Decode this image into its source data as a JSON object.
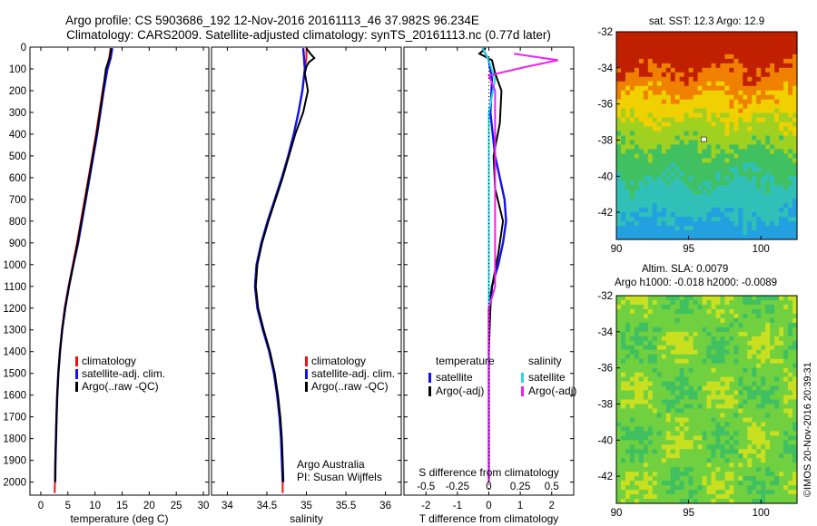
{
  "title_line1": "Argo profile: CS 5903686_192 12-Nov-2016 20161113_46 37.982S 96.234E",
  "title_line2": "Climatology: CARS2009. Satellite-adjusted climatology: synTS_20161113.nc (0.77d later)",
  "colors": {
    "clim": "#ee1111",
    "sat": "#1111ee",
    "argo": "#000000",
    "sat_s": "#22dddd",
    "argo_s": "#ee22ee"
  },
  "depth_axis": {
    "min": 0,
    "max": 2060,
    "ticks": [
      0,
      100,
      200,
      300,
      400,
      500,
      600,
      700,
      800,
      900,
      1000,
      1100,
      1200,
      1300,
      1400,
      1500,
      1600,
      1700,
      1800,
      1900,
      2000
    ]
  },
  "chart_data": [
    {
      "type": "line",
      "xlabel": "temperature (deg C)",
      "xlim": [
        -2,
        31
      ],
      "xticks": [
        0,
        5,
        10,
        15,
        20,
        25,
        30
      ],
      "legend": [
        "climatology",
        "satellite-adj. clim.",
        "Argo(..raw -QC)"
      ],
      "series": [
        {
          "name": "climatology",
          "color_key": "clim",
          "points": [
            [
              12.9,
              5
            ],
            [
              12.6,
              50
            ],
            [
              12.1,
              100
            ],
            [
              11.4,
              200
            ],
            [
              10.8,
              300
            ],
            [
              10.2,
              400
            ],
            [
              9.5,
              500
            ],
            [
              8.8,
              600
            ],
            [
              8.1,
              700
            ],
            [
              7.4,
              800
            ],
            [
              6.7,
              900
            ],
            [
              5.9,
              1000
            ],
            [
              5.1,
              1100
            ],
            [
              4.4,
              1200
            ],
            [
              3.9,
              1300
            ],
            [
              3.5,
              1400
            ],
            [
              3.2,
              1500
            ],
            [
              3.0,
              1600
            ],
            [
              2.85,
              1700
            ],
            [
              2.75,
              1800
            ],
            [
              2.65,
              1900
            ],
            [
              2.6,
              2000
            ],
            [
              2.55,
              2050
            ]
          ]
        },
        {
          "name": "satellite-adj. clim.",
          "color_key": "sat",
          "points": [
            [
              13.2,
              5
            ],
            [
              12.9,
              50
            ],
            [
              12.3,
              100
            ],
            [
              11.6,
              200
            ],
            [
              11.0,
              300
            ],
            [
              10.4,
              400
            ],
            [
              9.7,
              500
            ],
            [
              9.0,
              600
            ],
            [
              8.3,
              700
            ],
            [
              7.6,
              800
            ],
            [
              6.9,
              900
            ],
            [
              6.0,
              1000
            ],
            [
              5.2,
              1100
            ],
            [
              4.5,
              1200
            ],
            [
              3.95,
              1300
            ],
            [
              3.55,
              1400
            ],
            [
              3.25,
              1500
            ],
            [
              3.05,
              1600
            ],
            [
              2.9,
              1700
            ],
            [
              2.8,
              1800
            ],
            [
              2.7,
              1900
            ],
            [
              2.65,
              2000
            ]
          ]
        },
        {
          "name": "Argo(..raw -QC)",
          "color_key": "argo",
          "points": [
            [
              13.0,
              5
            ],
            [
              12.7,
              50
            ],
            [
              12.0,
              100
            ],
            [
              11.5,
              200
            ],
            [
              10.9,
              300
            ],
            [
              10.3,
              400
            ],
            [
              9.6,
              500
            ],
            [
              8.9,
              600
            ],
            [
              8.2,
              700
            ],
            [
              7.5,
              800
            ],
            [
              6.8,
              900
            ],
            [
              6.0,
              1000
            ],
            [
              5.2,
              1100
            ],
            [
              4.5,
              1200
            ],
            [
              3.95,
              1300
            ],
            [
              3.55,
              1400
            ],
            [
              3.25,
              1500
            ],
            [
              3.05,
              1600
            ],
            [
              2.9,
              1700
            ],
            [
              2.8,
              1800
            ],
            [
              2.7,
              1900
            ],
            [
              2.65,
              2000
            ]
          ]
        }
      ]
    },
    {
      "type": "line",
      "xlabel": "salinity",
      "xlim": [
        33.8,
        36.2
      ],
      "xticks": [
        34,
        34.5,
        35,
        35.5,
        36
      ],
      "legend": [
        "climatology",
        "satellite-adj. clim.",
        "Argo(..raw -QC)"
      ],
      "annotation": [
        "Argo Australia",
        "PI: Susan Wijffels"
      ],
      "series": [
        {
          "name": "climatology",
          "color_key": "clim",
          "points": [
            [
              35.0,
              5
            ],
            [
              35.0,
              50
            ],
            [
              34.98,
              100
            ],
            [
              34.95,
              200
            ],
            [
              34.9,
              300
            ],
            [
              34.84,
              400
            ],
            [
              34.77,
              500
            ],
            [
              34.69,
              600
            ],
            [
              34.6,
              700
            ],
            [
              34.51,
              800
            ],
            [
              34.43,
              900
            ],
            [
              34.37,
              1000
            ],
            [
              34.35,
              1100
            ],
            [
              34.38,
              1200
            ],
            [
              34.45,
              1300
            ],
            [
              34.53,
              1400
            ],
            [
              34.59,
              1500
            ],
            [
              34.63,
              1600
            ],
            [
              34.66,
              1700
            ],
            [
              34.68,
              1800
            ],
            [
              34.69,
              1900
            ],
            [
              34.7,
              2000
            ],
            [
              34.7,
              2050
            ]
          ]
        },
        {
          "name": "satellite-adj. clim.",
          "color_key": "sat",
          "points": [
            [
              34.96,
              5
            ],
            [
              34.97,
              50
            ],
            [
              34.98,
              100
            ],
            [
              34.95,
              200
            ],
            [
              34.9,
              300
            ],
            [
              34.84,
              400
            ],
            [
              34.77,
              500
            ],
            [
              34.69,
              600
            ],
            [
              34.6,
              700
            ],
            [
              34.51,
              800
            ],
            [
              34.43,
              900
            ],
            [
              34.37,
              1000
            ],
            [
              34.35,
              1100
            ],
            [
              34.38,
              1200
            ],
            [
              34.45,
              1300
            ],
            [
              34.53,
              1400
            ],
            [
              34.59,
              1500
            ],
            [
              34.63,
              1600
            ],
            [
              34.66,
              1700
            ],
            [
              34.68,
              1800
            ],
            [
              34.69,
              1900
            ],
            [
              34.7,
              2000
            ]
          ]
        },
        {
          "name": "Argo(..raw -QC)",
          "color_key": "argo",
          "points": [
            [
              35.0,
              5
            ],
            [
              35.05,
              30
            ],
            [
              35.1,
              50
            ],
            [
              35.03,
              70
            ],
            [
              35.0,
              90
            ],
            [
              34.98,
              120
            ],
            [
              35.02,
              200
            ],
            [
              34.96,
              300
            ],
            [
              34.86,
              400
            ],
            [
              34.78,
              500
            ],
            [
              34.7,
              600
            ],
            [
              34.61,
              700
            ],
            [
              34.52,
              800
            ],
            [
              34.44,
              900
            ],
            [
              34.38,
              1000
            ],
            [
              34.36,
              1100
            ],
            [
              34.39,
              1200
            ],
            [
              34.46,
              1300
            ],
            [
              34.54,
              1400
            ],
            [
              34.6,
              1500
            ],
            [
              34.64,
              1600
            ],
            [
              34.67,
              1700
            ],
            [
              34.69,
              1800
            ],
            [
              34.7,
              1900
            ],
            [
              34.71,
              2000
            ]
          ]
        }
      ]
    },
    {
      "type": "line",
      "xlabel": "T difference from climatology",
      "xlabel_top": "S difference from climatology",
      "xlim": [
        -2.7,
        2.7
      ],
      "xticks": [
        -2,
        -1,
        0,
        1,
        2
      ],
      "top_ticks": [
        -0.5,
        -0.25,
        0,
        0.25,
        0.5
      ],
      "top_tick_labels": [
        "-0.5",
        "-0.25",
        "0",
        "0.25",
        "0.5"
      ],
      "legend_left_title": "temperature",
      "legend_right_title": "salinity",
      "legend": [
        "satellite",
        "Argo(-adj)",
        "satellite",
        "Argo(-adj)"
      ],
      "series": [
        {
          "name": "satellite T",
          "color_key": "sat",
          "points": [
            [
              -0.2,
              5
            ],
            [
              0.0,
              60
            ],
            [
              0.1,
              150
            ],
            [
              0.05,
              300
            ],
            [
              0.2,
              500
            ],
            [
              0.35,
              600
            ],
            [
              0.5,
              700
            ],
            [
              0.55,
              800
            ],
            [
              0.45,
              900
            ],
            [
              0.3,
              1000
            ],
            [
              0.1,
              1100
            ],
            [
              0.0,
              1200
            ],
            [
              0.0,
              1400
            ],
            [
              0.0,
              2000
            ]
          ]
        },
        {
          "name": "Argo(-adj) T",
          "color_key": "argo",
          "points": [
            [
              -0.1,
              5
            ],
            [
              -0.3,
              30
            ],
            [
              0.1,
              60
            ],
            [
              0.2,
              120
            ],
            [
              0.4,
              200
            ],
            [
              0.35,
              350
            ],
            [
              0.15,
              500
            ],
            [
              0.2,
              650
            ],
            [
              0.45,
              800
            ],
            [
              0.3,
              950
            ],
            [
              0.1,
              1100
            ],
            [
              0.05,
              1200
            ],
            [
              0.0,
              1400
            ],
            [
              0.0,
              2000
            ]
          ]
        },
        {
          "name": "satellite S",
          "color_key": "sat_s",
          "points": [
            [
              -0.05,
              5
            ],
            [
              0.0,
              60
            ],
            [
              0.05,
              150
            ],
            [
              0.0,
              300
            ],
            [
              0.0,
              500
            ],
            [
              0.0,
              1200
            ],
            [
              0.0,
              2000
            ]
          ]
        },
        {
          "name": "Argo(-adj) S",
          "color_key": "argo_s",
          "points": [
            [
              0.2,
              30
            ],
            [
              0.55,
              60
            ],
            [
              0.3,
              90
            ],
            [
              0.0,
              130
            ],
            [
              0.05,
              200
            ],
            [
              0.05,
              400
            ],
            [
              0.05,
              700
            ],
            [
              0.05,
              1100
            ],
            [
              0.0,
              1200
            ],
            [
              0.0,
              2000
            ]
          ]
        }
      ]
    },
    {
      "type": "heatmap",
      "title": "sat. SST: 12.3 Argo: 12.9",
      "xlim": [
        90,
        102.5
      ],
      "ylim": [
        -43.5,
        -32
      ],
      "xticks": [
        90,
        95,
        100
      ],
      "yticks": [
        -32,
        -34,
        -36,
        -38,
        -40,
        -42
      ]
    },
    {
      "type": "heatmap",
      "title_line1": "Altim. SLA: 0.0079",
      "title_line2": "Argo h1000: -0.018 h2000: -0.0089",
      "xlim": [
        90,
        102.5
      ],
      "ylim": [
        -43.5,
        -32
      ],
      "xticks": [
        90,
        95,
        100
      ],
      "yticks": [
        -32,
        -34,
        -36,
        -38,
        -40,
        -42
      ]
    }
  ],
  "credit": "©IMOS 20-Nov-2016 20:39:31"
}
